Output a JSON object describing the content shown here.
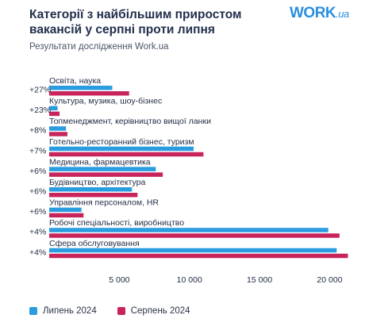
{
  "header": {
    "title": "Категорії з найбільшим приростом вакансій у серпні проти липня",
    "subtitle": "Результати дослідження Work.ua",
    "logo_main": "WORK",
    "logo_suffix": ".ua"
  },
  "colors": {
    "july": "#2a9ce0",
    "august": "#c8245c",
    "text": "#1f2a44"
  },
  "legend": {
    "july_label": "Липень 2024",
    "august_label": "Серпень 2024"
  },
  "chart_data": {
    "type": "bar",
    "orientation": "horizontal",
    "title": "Категорії з найбільшим приростом вакансій у серпні проти липня",
    "subtitle": "Результати дослідження Work.ua",
    "categories": [
      "Освіта, наука",
      "Культура, музика, шоу-бізнес",
      "Топменеджмент, керівництво вищої ланки",
      "Готельно-ресторанний бізнес, туризм",
      "Медицина, фармацевтика",
      "Будівництво, архітектура",
      "Управління персоналом, HR",
      "Робочі спеціальності, виробництво",
      "Сфера обслуговування"
    ],
    "growth_labels": [
      "+27%",
      "+23%",
      "+8%",
      "+7%",
      "+6%",
      "+6%",
      "+6%",
      "+4%",
      "+4%"
    ],
    "series": [
      {
        "name": "Липень 2024",
        "values": [
          4500,
          600,
          1200,
          10300,
          7600,
          5900,
          2300,
          19900,
          20500
        ]
      },
      {
        "name": "Серпень 2024",
        "values": [
          5700,
          740,
          1300,
          11000,
          8100,
          6300,
          2450,
          20700,
          21300
        ]
      }
    ],
    "xticks": [
      5000,
      10000,
      15000,
      20000
    ],
    "xtick_labels": [
      "5 000",
      "10 000",
      "15 000",
      "20 000"
    ],
    "xlim": [
      0,
      21500
    ],
    "grid": false,
    "legend_position": "bottom-left"
  }
}
